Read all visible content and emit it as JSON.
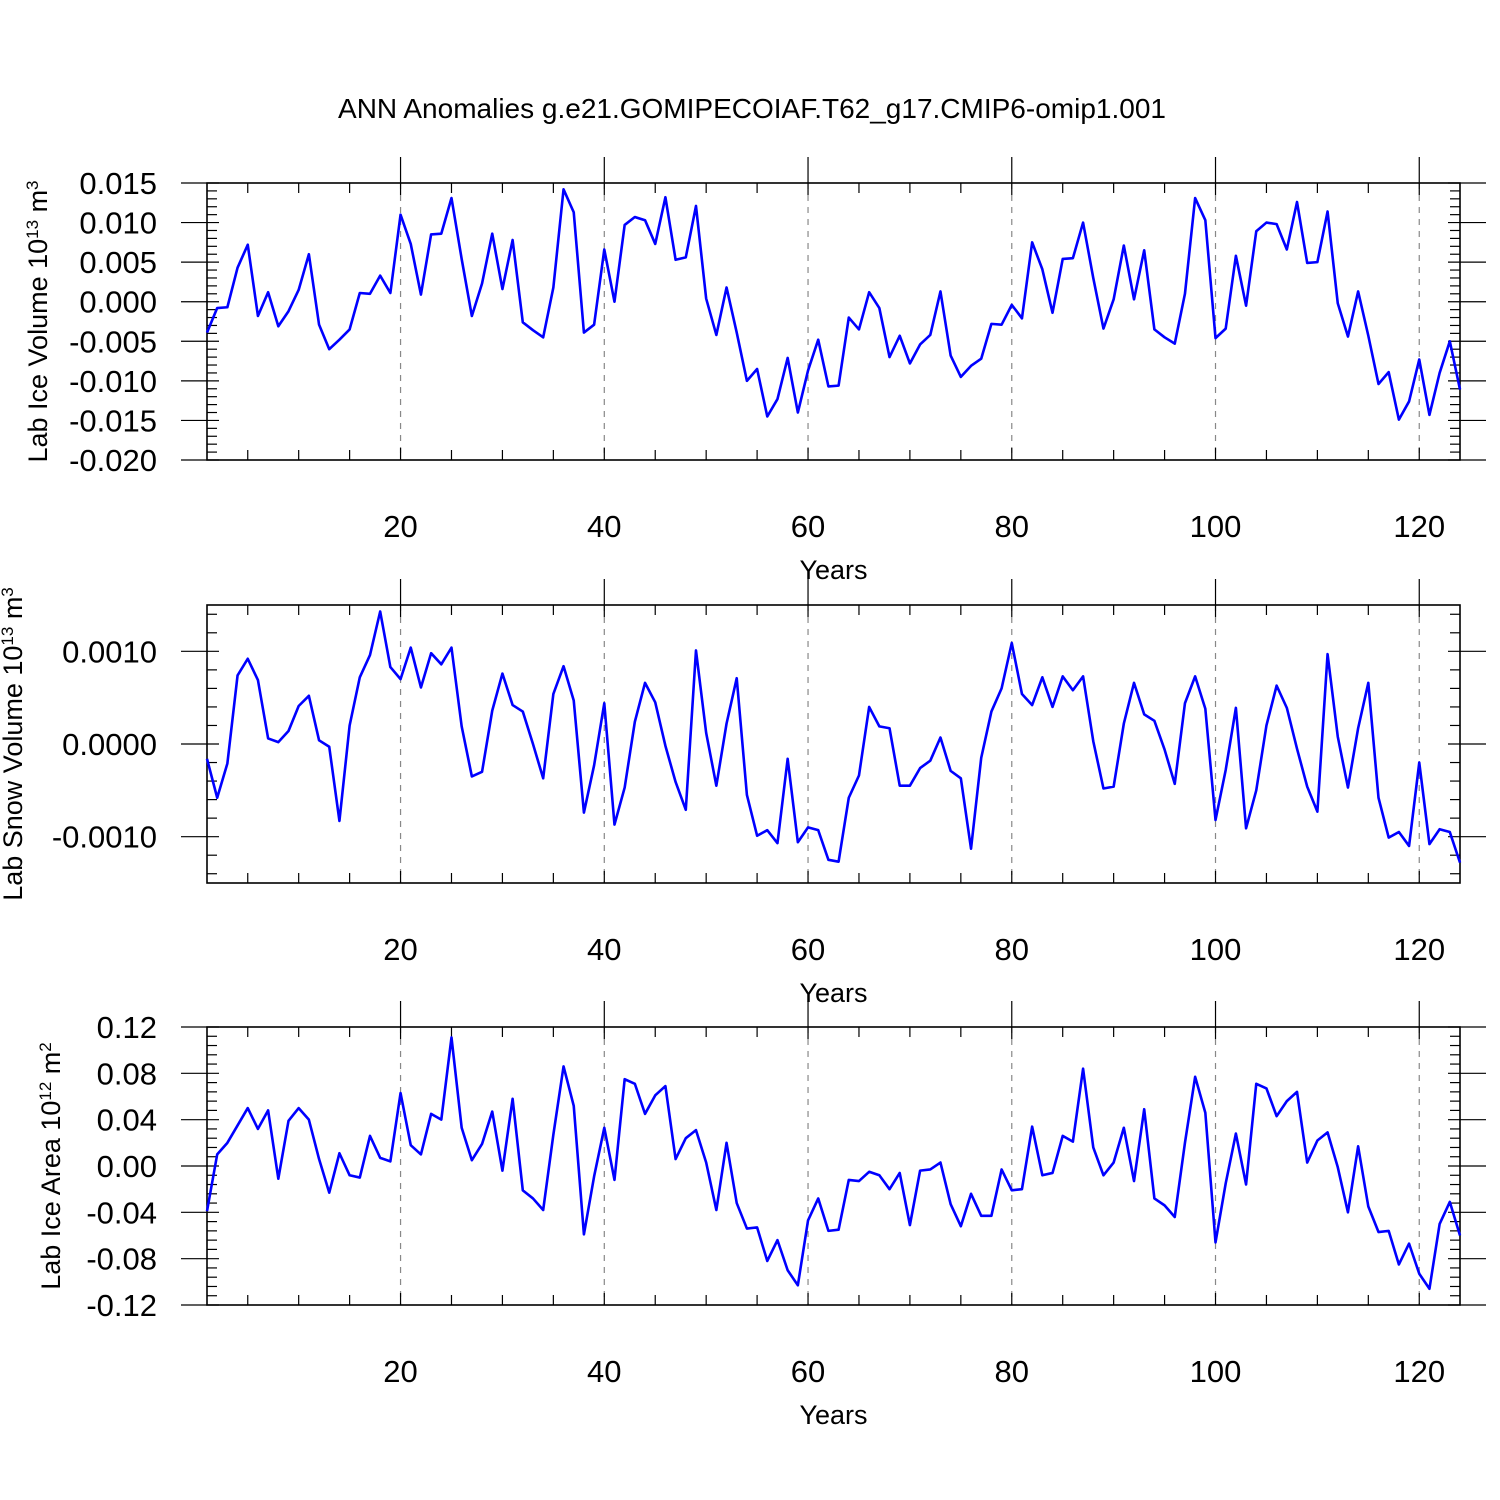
{
  "title": "ANN Anomalies g.e21.GOMIPECOIAF.T62_g17.CMIP6-omip1.001",
  "line_color": "#0000ff",
  "chart_data": [
    {
      "type": "line",
      "ylabel_main": "Lab Ice Volume 10",
      "ylabel_exp": "13",
      "ylabel_unit": "m",
      "ylabel_unit_exp": "3",
      "xlabel": "Years",
      "xlim": [
        1,
        124
      ],
      "ylim": [
        -0.02,
        0.015
      ],
      "xticks": [
        20,
        40,
        60,
        80,
        100,
        120
      ],
      "xtick_labels": [
        "20",
        "40",
        "60",
        "80",
        "100",
        "120"
      ],
      "yticks": [
        -0.02,
        -0.015,
        -0.01,
        -0.005,
        0.0,
        0.005,
        0.01,
        0.015
      ],
      "ytick_labels": [
        "-0.020",
        "-0.015",
        "-0.010",
        "-0.005",
        "0.000",
        "0.005",
        "0.010",
        "0.015"
      ],
      "grid": "vertical dashed at x ticks",
      "series": [
        {
          "name": "Lab Ice Volume",
          "x_start": 1,
          "values": [
            -0.0039,
            -0.0008,
            -0.0007,
            0.0043,
            0.0072,
            -0.0018,
            0.0012,
            -0.0031,
            -0.0012,
            0.0015,
            0.006,
            -0.0029,
            -0.006,
            -0.0048,
            -0.0035,
            0.0011,
            0.001,
            0.0033,
            0.0011,
            0.011,
            0.0073,
            0.0009,
            0.0085,
            0.0086,
            0.0131,
            0.0054,
            -0.0018,
            0.0023,
            0.0086,
            0.0016,
            0.0078,
            -0.0026,
            -0.0036,
            -0.0045,
            0.0018,
            0.0142,
            0.0113,
            -0.0039,
            -0.0029,
            0.0066,
            0.0,
            0.0097,
            0.0107,
            0.0103,
            0.0073,
            0.0132,
            0.0053,
            0.0056,
            0.0121,
            0.0004,
            -0.0042,
            0.0018,
            -0.0039,
            -0.01,
            -0.0085,
            -0.0145,
            -0.0123,
            -0.0071,
            -0.014,
            -0.0087,
            -0.0048,
            -0.0107,
            -0.0106,
            -0.002,
            -0.0035,
            0.0012,
            -0.0008,
            -0.007,
            -0.0043,
            -0.0078,
            -0.0054,
            -0.0042,
            0.0013,
            -0.0068,
            -0.0095,
            -0.0081,
            -0.0072,
            -0.0028,
            -0.0029,
            -0.0004,
            -0.0021,
            0.0075,
            0.0041,
            -0.0014,
            0.0054,
            0.0055,
            0.01,
            0.003,
            -0.0034,
            0.0003,
            0.0071,
            0.0003,
            0.0065,
            -0.0035,
            -0.0045,
            -0.0053,
            0.001,
            0.0131,
            0.0103,
            -0.0046,
            -0.0034,
            0.0058,
            -0.0005,
            0.0089,
            0.01,
            0.0098,
            0.0066,
            0.0126,
            0.0049,
            0.005,
            0.0114,
            -0.0002,
            -0.0044,
            0.0013,
            -0.0043,
            -0.0104,
            -0.0089,
            -0.0149,
            -0.0126,
            -0.0073,
            -0.0143,
            -0.009,
            -0.005,
            -0.0111
          ]
        }
      ]
    },
    {
      "type": "line",
      "ylabel_main": "Lab Snow Volume 10",
      "ylabel_exp": "13",
      "ylabel_unit": "m",
      "ylabel_unit_exp": "3",
      "xlabel": "Years",
      "xlim": [
        1,
        124
      ],
      "ylim": [
        -0.0015,
        0.0015
      ],
      "xticks": [
        20,
        40,
        60,
        80,
        100,
        120
      ],
      "xtick_labels": [
        "20",
        "40",
        "60",
        "80",
        "100",
        "120"
      ],
      "yticks": [
        -0.001,
        0.0,
        0.001
      ],
      "ytick_labels": [
        "-0.0010",
        "0.0000",
        "0.0010"
      ],
      "grid": "vertical dashed at x ticks",
      "series": [
        {
          "name": "Lab Snow Volume",
          "x_start": 1,
          "values": [
            -0.00016,
            -0.00058,
            -0.00021,
            0.00074,
            0.00092,
            0.00069,
            6e-05,
            2e-05,
            0.00014,
            0.00041,
            0.00052,
            4e-05,
            -3e-05,
            -0.00083,
            0.0002,
            0.00072,
            0.00096,
            0.00143,
            0.00083,
            0.0007,
            0.00104,
            0.00061,
            0.00098,
            0.00086,
            0.00104,
            0.00019,
            -0.00035,
            -0.0003,
            0.00036,
            0.00076,
            0.00042,
            0.00035,
            0.0,
            -0.00037,
            0.00054,
            0.00084,
            0.00047,
            -0.00074,
            -0.00023,
            0.00044,
            -0.00087,
            -0.00047,
            0.00024,
            0.00066,
            0.00045,
            -2e-05,
            -0.00041,
            -0.00071,
            0.00101,
            0.00012,
            -0.00045,
            0.00022,
            0.00071,
            -0.00055,
            -0.00099,
            -0.00093,
            -0.00107,
            -0.00016,
            -0.00106,
            -0.0009,
            -0.00093,
            -0.00125,
            -0.00127,
            -0.00058,
            -0.00034,
            0.0004,
            0.00019,
            0.00017,
            -0.00045,
            -0.00045,
            -0.00026,
            -0.00018,
            7e-05,
            -0.00029,
            -0.00037,
            -0.00113,
            -0.00015,
            0.00035,
            0.0006,
            0.00109,
            0.00054,
            0.00042,
            0.00072,
            0.0004,
            0.00073,
            0.00058,
            0.00073,
            3e-05,
            -0.00048,
            -0.00046,
            0.00022,
            0.00066,
            0.00032,
            0.00025,
            -6e-05,
            -0.00043,
            0.00044,
            0.00073,
            0.00038,
            -0.00082,
            -0.00028,
            0.00039,
            -0.00091,
            -0.0005,
            0.0002,
            0.00063,
            0.00039,
            -5e-05,
            -0.00046,
            -0.00073,
            0.00097,
            8e-05,
            -0.00047,
            0.00017,
            0.00066,
            -0.00058,
            -0.00101,
            -0.00095,
            -0.0011,
            -0.0002,
            -0.00108,
            -0.00092,
            -0.00095,
            -0.00128
          ]
        }
      ]
    },
    {
      "type": "line",
      "ylabel_main": "Lab Ice Area 10",
      "ylabel_exp": "12",
      "ylabel_unit": "m",
      "ylabel_unit_exp": "2",
      "xlabel": "Years",
      "xlim": [
        1,
        124
      ],
      "ylim": [
        -0.12,
        0.12
      ],
      "xticks": [
        20,
        40,
        60,
        80,
        100,
        120
      ],
      "xtick_labels": [
        "20",
        "40",
        "60",
        "80",
        "100",
        "120"
      ],
      "yticks": [
        -0.12,
        -0.08,
        -0.04,
        0.0,
        0.04,
        0.08,
        0.12
      ],
      "ytick_labels": [
        "-0.12",
        "-0.08",
        "-0.04",
        "0.00",
        "0.04",
        "0.08",
        "0.12"
      ],
      "grid": "vertical dashed at x ticks",
      "series": [
        {
          "name": "Lab Ice Area",
          "x_start": 1,
          "values": [
            -0.039,
            0.01,
            0.02,
            0.035,
            0.05,
            0.032,
            0.048,
            -0.011,
            0.039,
            0.05,
            0.04,
            0.006,
            -0.023,
            0.011,
            -0.008,
            -0.01,
            0.026,
            0.007,
            0.004,
            0.063,
            0.018,
            0.01,
            0.045,
            0.04,
            0.111,
            0.033,
            0.005,
            0.019,
            0.047,
            -0.004,
            0.058,
            -0.021,
            -0.028,
            -0.038,
            0.027,
            0.086,
            0.052,
            -0.059,
            -0.009,
            0.033,
            -0.012,
            0.075,
            0.071,
            0.045,
            0.061,
            0.069,
            0.006,
            0.024,
            0.031,
            0.003,
            -0.038,
            0.02,
            -0.032,
            -0.054,
            -0.053,
            -0.082,
            -0.064,
            -0.09,
            -0.103,
            -0.047,
            -0.028,
            -0.056,
            -0.055,
            -0.012,
            -0.013,
            -0.005,
            -0.008,
            -0.02,
            -0.006,
            -0.051,
            -0.004,
            -0.003,
            0.003,
            -0.033,
            -0.052,
            -0.024,
            -0.043,
            -0.043,
            -0.003,
            -0.021,
            -0.02,
            0.034,
            -0.008,
            -0.006,
            0.026,
            0.021,
            0.084,
            0.016,
            -0.008,
            0.003,
            0.033,
            -0.013,
            0.049,
            -0.028,
            -0.034,
            -0.044,
            0.02,
            0.077,
            0.046,
            -0.066,
            -0.015,
            0.028,
            -0.016,
            0.071,
            0.067,
            0.043,
            0.056,
            0.064,
            0.003,
            0.022,
            0.029,
            -0.001,
            -0.04,
            0.017,
            -0.035,
            -0.057,
            -0.056,
            -0.085,
            -0.067,
            -0.093,
            -0.106,
            -0.05,
            -0.031,
            -0.06
          ]
        }
      ]
    }
  ]
}
